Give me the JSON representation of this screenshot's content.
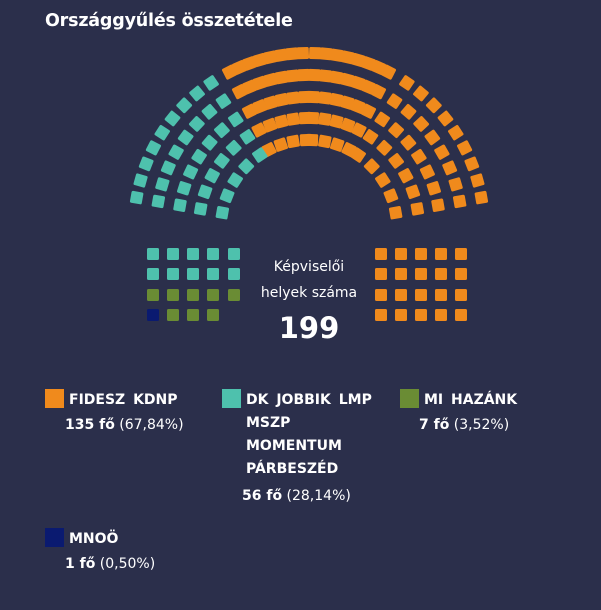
{
  "title": "Országgyűlés összetétele",
  "center": {
    "label_line1": "Képviselői",
    "label_line2": "helyek száma",
    "total": "199"
  },
  "colors": {
    "background": "#2b2f4b",
    "fidesz": "#f08a1c",
    "dk": "#4ec1ad",
    "mihazank": "#6a8c34",
    "mnoo": "#0a1a70"
  },
  "legend": [
    {
      "name_lines": [
        "FIDESZ  KDNP"
      ],
      "count": "135 fő",
      "pct": "(67,84%)"
    },
    {
      "name_lines": [
        "DK  JOBBIK  LMP",
        "MSZP",
        "MOMENTUM",
        "PÁRBESZÉD"
      ],
      "count": "56 fő",
      "pct": "(28,14%)"
    },
    {
      "name_lines": [
        "MI HAZÁNK"
      ],
      "count": "7 fő",
      "pct": "(3,52%)"
    },
    {
      "name_lines": [
        "MNOÖ"
      ],
      "count": "1 fő",
      "pct": "(0,50%)"
    }
  ],
  "chart_data": {
    "type": "parliament",
    "total_seats": 199,
    "series": [
      {
        "name": "FIDESZ  KDNP",
        "seats": 135,
        "percent": 67.84
      },
      {
        "name": "DK  JOBBIK  LMP MSZP MOMENTUM PÁRBESZÉD",
        "seats": 56,
        "percent": 28.14
      },
      {
        "name": "MI HAZÁNK",
        "seats": 7,
        "percent": 3.52
      },
      {
        "name": "MNOÖ",
        "seats": 1,
        "percent": 0.5
      }
    ]
  }
}
